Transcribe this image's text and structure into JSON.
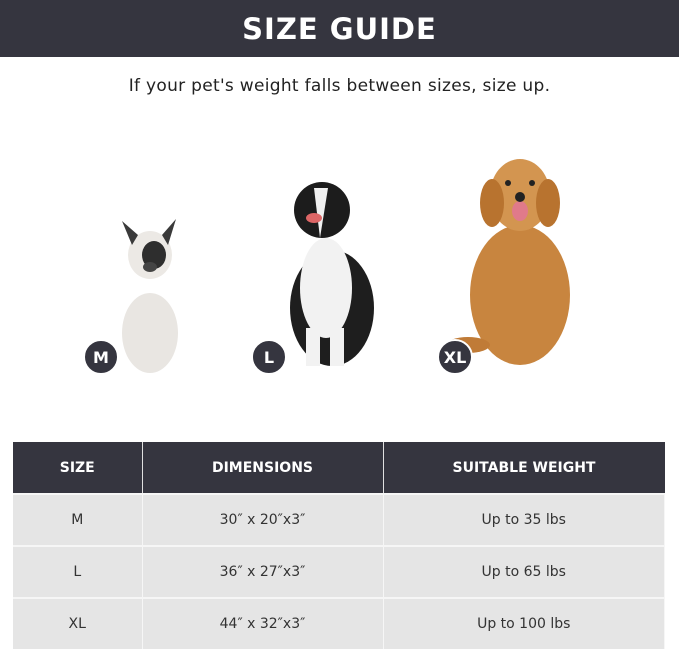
{
  "header": {
    "title": "SIZE GUIDE"
  },
  "subtitle": "If your pet's weight falls between sizes, size up.",
  "dogs": [
    {
      "badge": "M"
    },
    {
      "badge": "L"
    },
    {
      "badge": "XL"
    }
  ],
  "table": {
    "columns": [
      "SIZE",
      "DIMENSIONS",
      "SUITABLE WEIGHT"
    ],
    "rows": [
      [
        "M",
        "30″ x 20″x3″",
        "Up to 35 lbs"
      ],
      [
        "L",
        "36″ x 27″x3″",
        "Up to 65 lbs"
      ],
      [
        "XL",
        "44″ x 32″x3″",
        "Up to 100 lbs"
      ]
    ]
  },
  "colors": {
    "dark": "#35353f",
    "row": "#e5e5e5"
  }
}
